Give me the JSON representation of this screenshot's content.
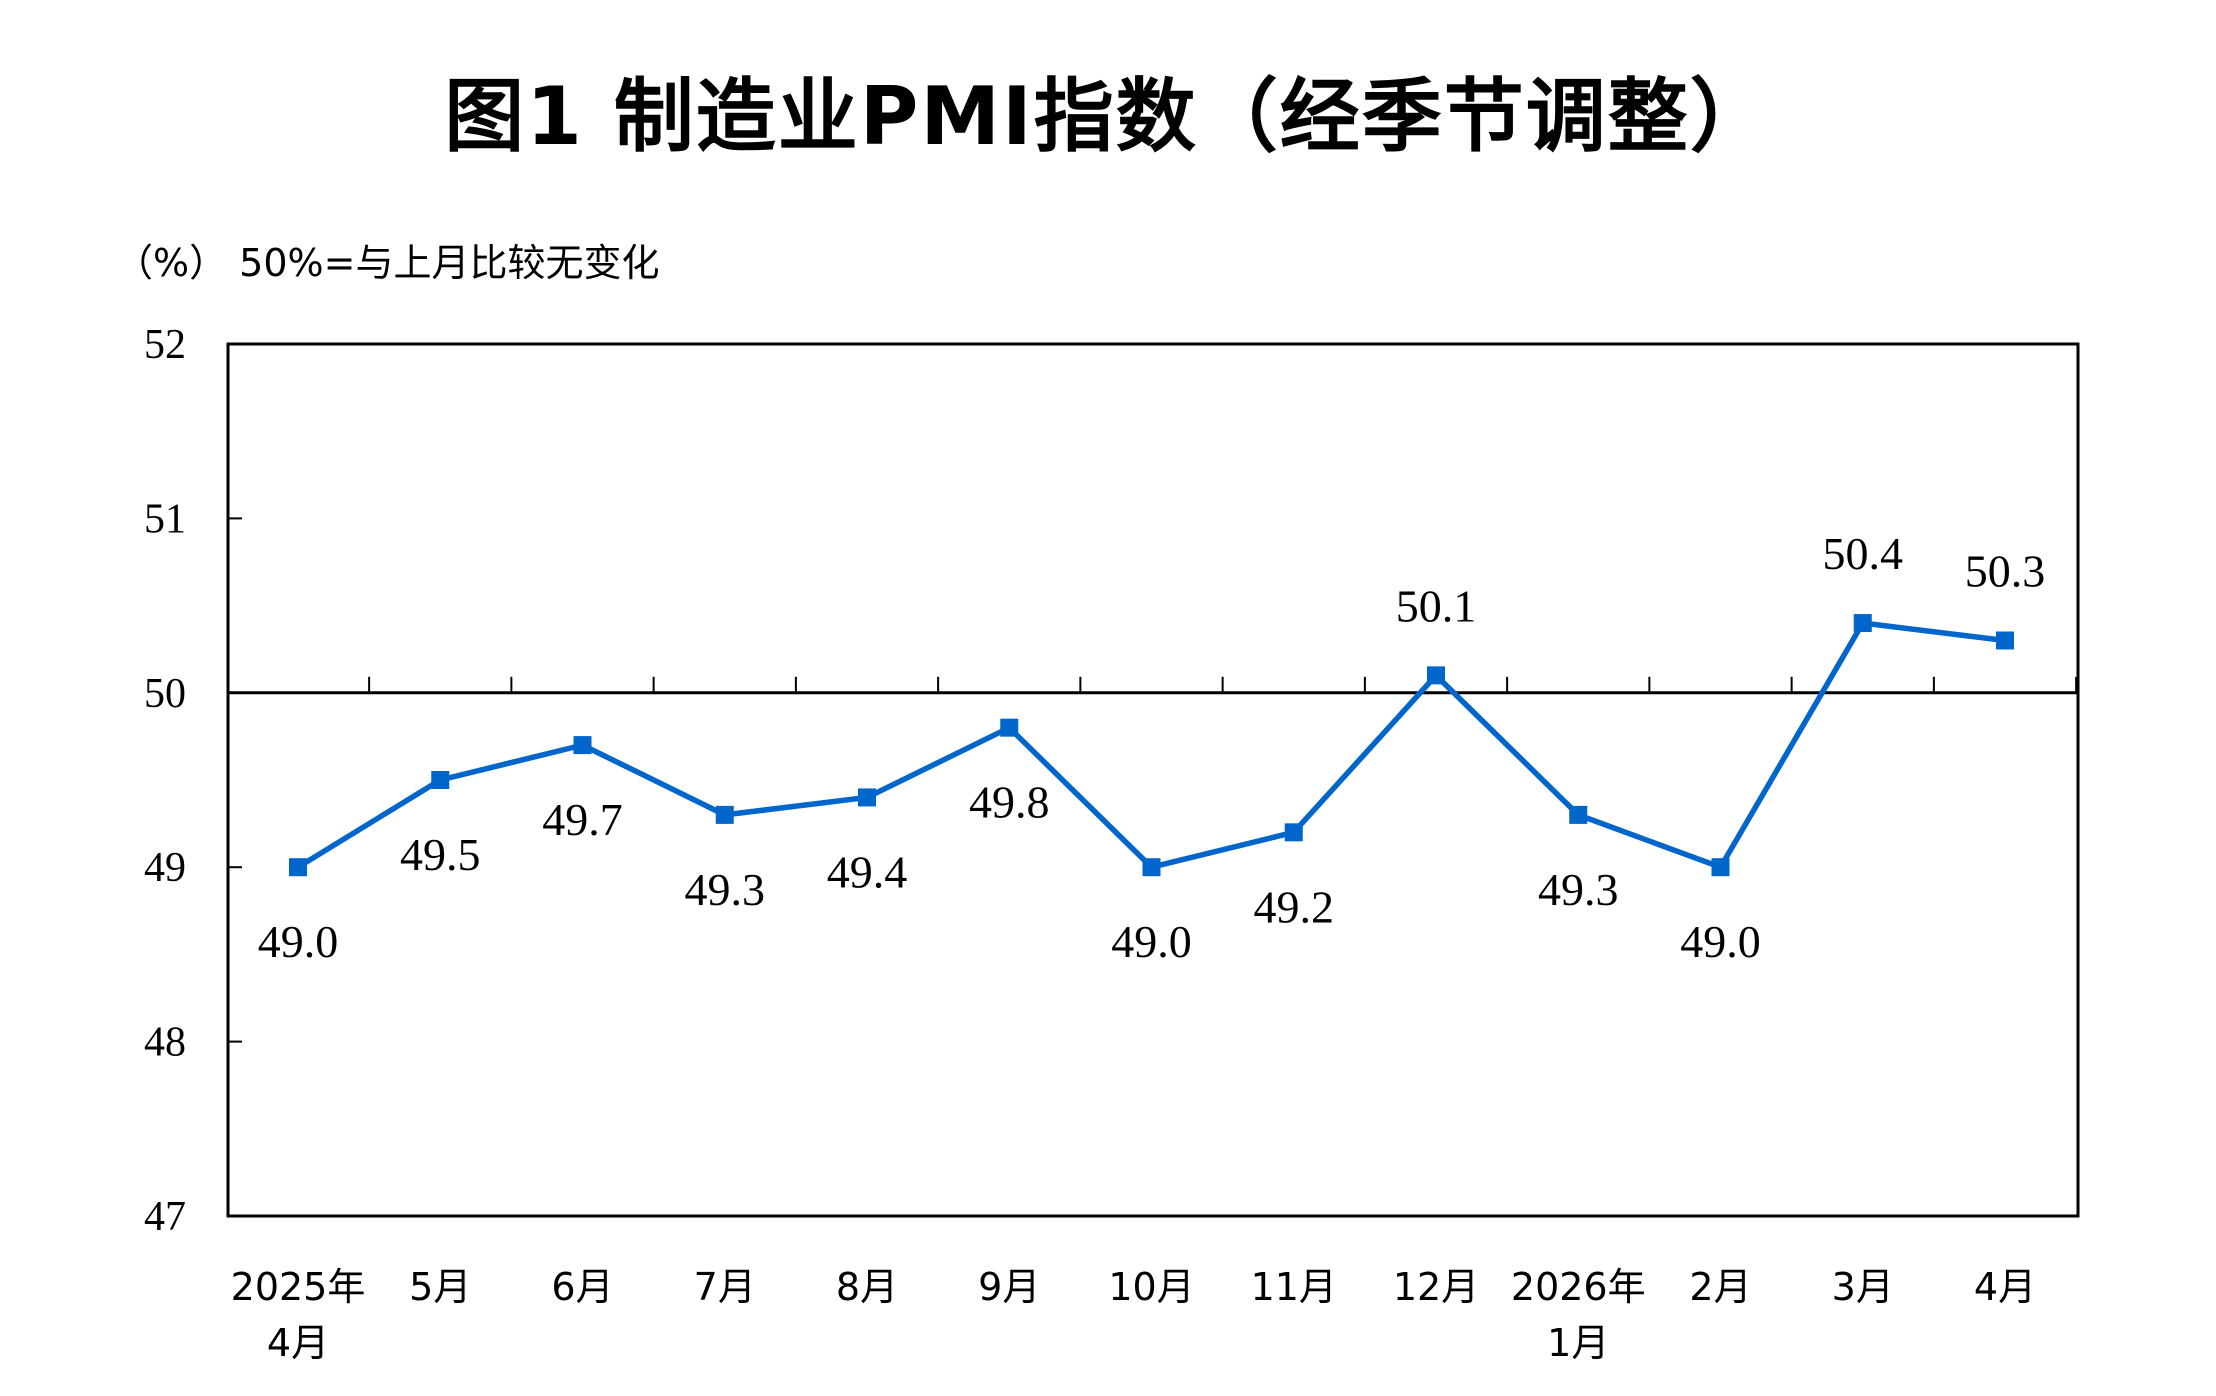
{
  "chart_data": {
    "type": "line",
    "title": "图1 制造业PMI指数（经季节调整）",
    "ylabel": "（%） 50%=与上月比较无变化",
    "xlabel": "",
    "ylim": [
      47,
      52
    ],
    "yticks": [
      "47",
      "48",
      "49",
      "50",
      "51",
      "52"
    ],
    "reference_line": 50,
    "grid": false,
    "categories": [
      [
        "2025年",
        "4月"
      ],
      [
        "5月"
      ],
      [
        "6月"
      ],
      [
        "7月"
      ],
      [
        "8月"
      ],
      [
        "9月"
      ],
      [
        "10月"
      ],
      [
        "11月"
      ],
      [
        "12月"
      ],
      [
        "2026年",
        "1月"
      ],
      [
        "2月"
      ],
      [
        "3月"
      ],
      [
        "4月"
      ]
    ],
    "values": [
      49.0,
      49.5,
      49.7,
      49.3,
      49.4,
      49.8,
      49.0,
      49.2,
      50.1,
      49.3,
      49.0,
      50.4,
      50.3
    ],
    "data_labels": [
      "49.0",
      "49.5",
      "49.7",
      "49.3",
      "49.4",
      "49.8",
      "49.0",
      "49.2",
      "50.1",
      "49.3",
      "49.0",
      "50.4",
      "50.3"
    ],
    "label_placement": [
      "below",
      "below",
      "below",
      "below",
      "below",
      "below",
      "below",
      "below",
      "above",
      "below",
      "below",
      "above",
      "above"
    ],
    "series_color": "#0066CC",
    "marker": "square"
  }
}
